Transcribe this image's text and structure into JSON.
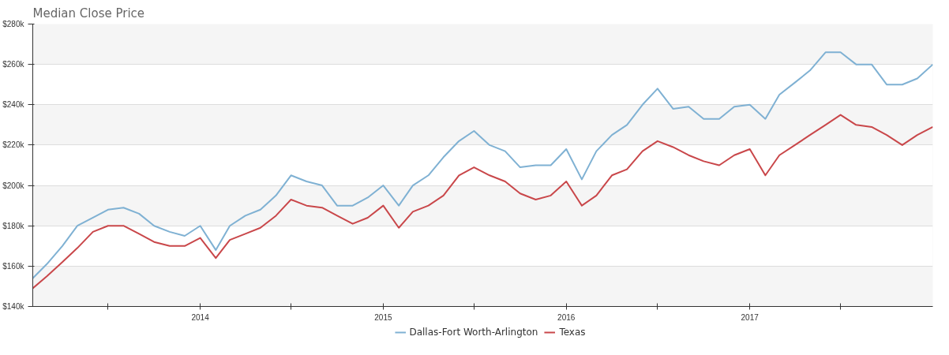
{
  "chart_data": {
    "type": "line",
    "title": "Median Close Price",
    "x": [
      "2013-02",
      "2013-03",
      "2013-04",
      "2013-05",
      "2013-06",
      "2013-07",
      "2013-08",
      "2013-09",
      "2013-10",
      "2013-11",
      "2013-12",
      "2014-01",
      "2014-02",
      "2014-03",
      "2014-04",
      "2014-05",
      "2014-06",
      "2014-07",
      "2014-08",
      "2014-09",
      "2014-10",
      "2014-11",
      "2014-12",
      "2015-01",
      "2015-02",
      "2015-03",
      "2015-04",
      "2015-05",
      "2015-06",
      "2015-07",
      "2015-08",
      "2015-09",
      "2015-10",
      "2015-11",
      "2015-12",
      "2016-01",
      "2016-02",
      "2016-03",
      "2016-04",
      "2016-05",
      "2016-06",
      "2016-07",
      "2016-08",
      "2016-09",
      "2016-10",
      "2016-11",
      "2016-12",
      "2017-01",
      "2017-02",
      "2017-03",
      "2017-04",
      "2017-05",
      "2017-06",
      "2017-07",
      "2017-08",
      "2017-09",
      "2017-10",
      "2017-11",
      "2017-12",
      "2018-01"
    ],
    "series": [
      {
        "name": "Dallas-Fort Worth-Arlington",
        "color": "#7fb1d3",
        "values": [
          154,
          161,
          170,
          180,
          184,
          188,
          189,
          186,
          180,
          177,
          175,
          180,
          168,
          180,
          185,
          188,
          195,
          205,
          202,
          200,
          190,
          190,
          194,
          200,
          190,
          200,
          205,
          214,
          222,
          227,
          220,
          217,
          209,
          210,
          210,
          218,
          203,
          217,
          225,
          230,
          240,
          248,
          238,
          239,
          233,
          233,
          239,
          240,
          233,
          245,
          251,
          257,
          266,
          266,
          260,
          260,
          250,
          250,
          253,
          260
        ]
      },
      {
        "name": "Texas",
        "color": "#c9474a",
        "values": [
          149,
          155,
          162,
          169,
          177,
          180,
          180,
          176,
          172,
          170,
          170,
          174,
          164,
          173,
          176,
          179,
          185,
          193,
          190,
          189,
          185,
          181,
          184,
          190,
          179,
          187,
          190,
          195,
          205,
          209,
          205,
          202,
          196,
          193,
          195,
          202,
          190,
          195,
          205,
          208,
          217,
          222,
          219,
          215,
          212,
          210,
          215,
          218,
          205,
          215,
          220,
          225,
          230,
          235,
          230,
          229,
          225,
          220,
          225,
          229
        ]
      }
    ],
    "xlim": [
      "2013-02",
      "2018-01"
    ],
    "xticks": [
      {
        "value": "2013-07",
        "label": null
      },
      {
        "value": "2014-01",
        "label": "2014"
      },
      {
        "value": "2014-07",
        "label": null
      },
      {
        "value": "2015-01",
        "label": "2015"
      },
      {
        "value": "2015-07",
        "label": null
      },
      {
        "value": "2016-01",
        "label": "2016"
      },
      {
        "value": "2016-07",
        "label": null
      },
      {
        "value": "2017-01",
        "label": "2017"
      },
      {
        "value": "2017-07",
        "label": null
      }
    ],
    "ylim": [
      140,
      280
    ],
    "yticks": [
      {
        "value": 140,
        "label": "$140k"
      },
      {
        "value": 160,
        "label": "$160k"
      },
      {
        "value": 180,
        "label": "$180k"
      },
      {
        "value": 200,
        "label": "$200k"
      },
      {
        "value": 220,
        "label": "$220k"
      },
      {
        "value": 240,
        "label": "$240k"
      },
      {
        "value": 260,
        "label": "$260k"
      },
      {
        "value": 280,
        "label": "$280k"
      }
    ],
    "grid": "y",
    "legend": "bottom",
    "marker": "none",
    "line_style": "solid"
  }
}
